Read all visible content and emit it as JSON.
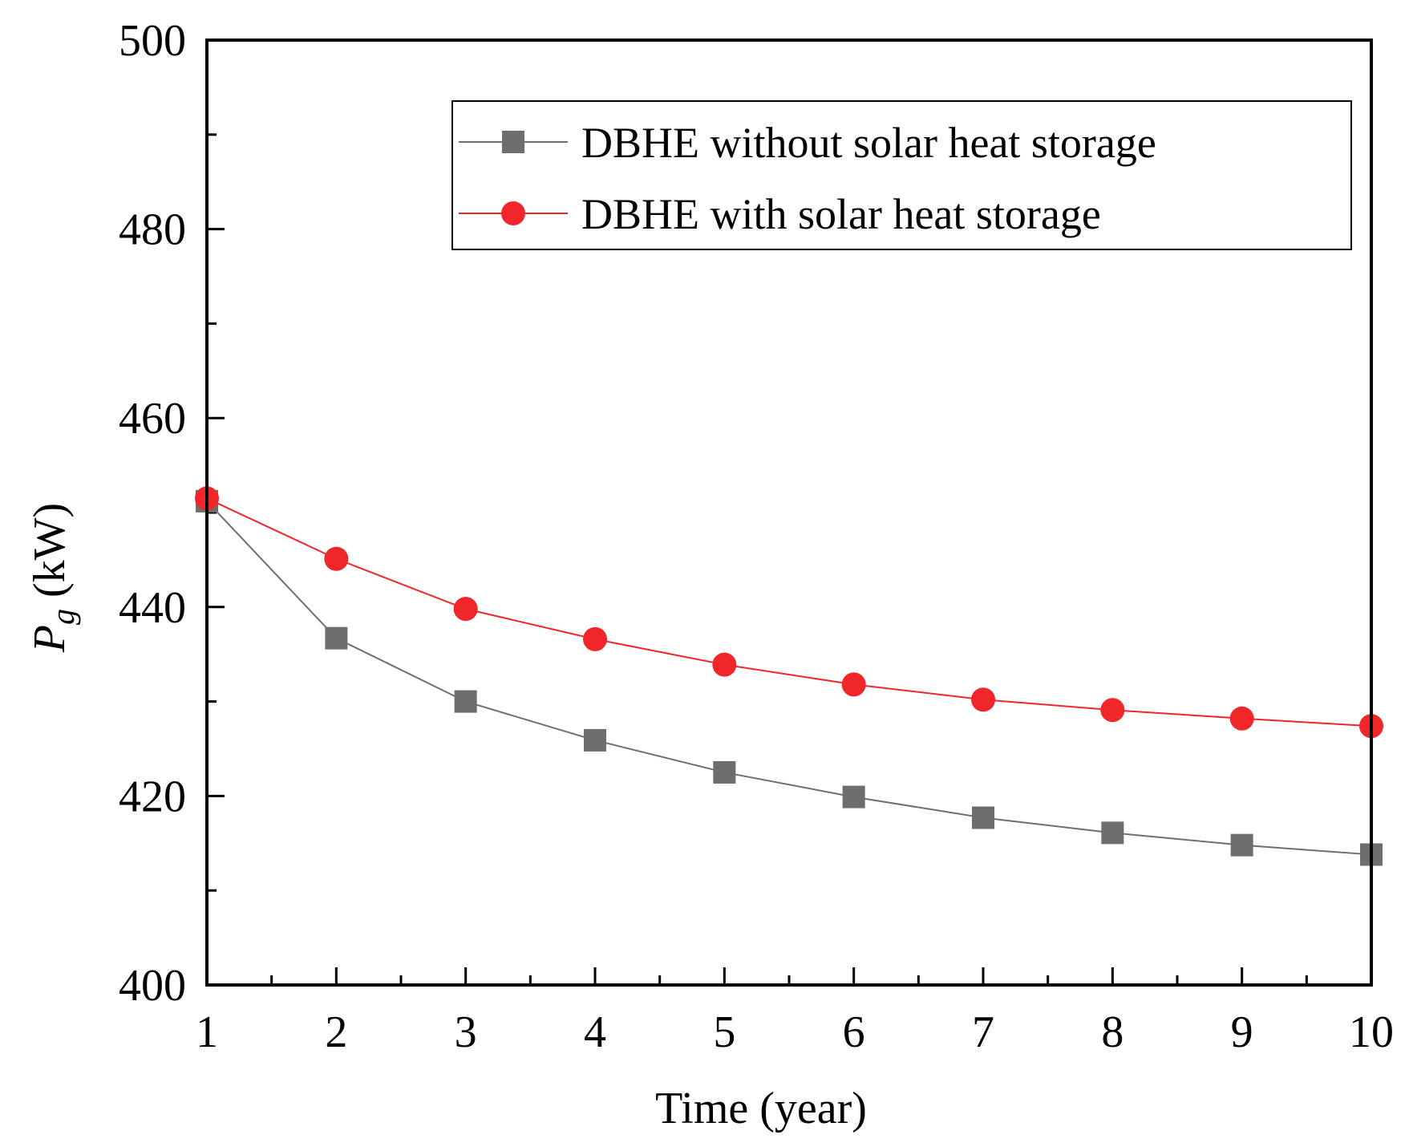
{
  "chart_data": {
    "type": "line",
    "title": "",
    "xlabel": "Time (year)",
    "ylabel": {
      "symbol": "P",
      "subscript": "g",
      "unit": "(kW)"
    },
    "x": [
      1,
      2,
      3,
      4,
      5,
      6,
      7,
      8,
      9,
      10
    ],
    "xlim": [
      1,
      10
    ],
    "ylim": [
      400,
      500
    ],
    "x_ticks": [
      "1",
      "2",
      "3",
      "4",
      "5",
      "6",
      "7",
      "8",
      "9",
      "10"
    ],
    "y_ticks": [
      "400",
      "420",
      "440",
      "460",
      "480",
      "500"
    ],
    "grid": false,
    "legend_position": "top-right",
    "series": [
      {
        "name": "DBHE without solar heat storage",
        "marker": "square",
        "color": "#6e6e6e",
        "values": [
          451.2,
          436.7,
          430.0,
          425.9,
          422.5,
          419.9,
          417.7,
          416.1,
          414.8,
          413.8
        ]
      },
      {
        "name": "DBHE with solar heat storage",
        "marker": "circle",
        "color": "#f0262b",
        "values": [
          451.5,
          445.1,
          439.8,
          436.6,
          433.9,
          431.8,
          430.2,
          429.1,
          428.2,
          427.4
        ]
      }
    ]
  }
}
